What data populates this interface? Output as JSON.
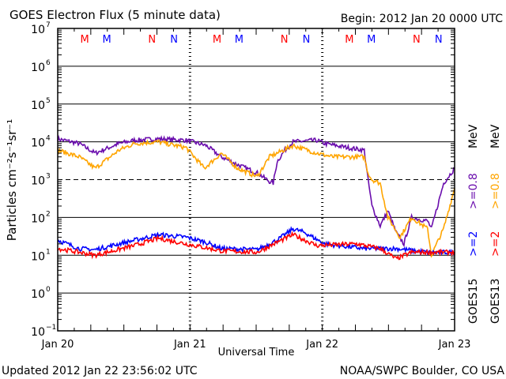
{
  "chart_data": {
    "type": "line",
    "title": "GOES Electron Flux (5 minute data)",
    "begin_label": "Begin: 2012 Jan 20 0000 UTC",
    "xlabel": "Universal Time",
    "ylabel": "Particles cm⁻²s⁻¹sr⁻¹",
    "x_unit": "hours since 2012 Jan 20 0000 UTC",
    "xlim": [
      0,
      72
    ],
    "x_ticks": [
      {
        "h": 0,
        "label": "Jan 20"
      },
      {
        "h": 24,
        "label": "Jan 21"
      },
      {
        "h": 48,
        "label": "Jan 22"
      },
      {
        "h": 72,
        "label": "Jan 23"
      }
    ],
    "yscale": "log",
    "ylim": [
      0.1,
      10000000
    ],
    "y_ticks": [
      {
        "exp": "7",
        "v": 10000000.0
      },
      {
        "exp": "6",
        "v": 1000000.0
      },
      {
        "exp": "5",
        "v": 100000.0
      },
      {
        "exp": "4",
        "v": 10000.0
      },
      {
        "exp": "3",
        "v": 1000.0
      },
      {
        "exp": "2",
        "v": 100.0
      },
      {
        "exp": "1",
        "v": 10.0
      },
      {
        "exp": "0",
        "v": 1
      },
      {
        "exp": "−1",
        "v": 0.1
      }
    ],
    "threshold_dashed": 1000,
    "markers": [
      {
        "h": 4.9,
        "label": "M",
        "color": "#ff0000"
      },
      {
        "h": 8.9,
        "label": "M",
        "color": "#0000ff"
      },
      {
        "h": 17.1,
        "label": "N",
        "color": "#ff0000"
      },
      {
        "h": 21.1,
        "label": "N",
        "color": "#0000ff"
      },
      {
        "h": 28.9,
        "label": "M",
        "color": "#ff0000"
      },
      {
        "h": 32.9,
        "label": "M",
        "color": "#0000ff"
      },
      {
        "h": 41.1,
        "label": "N",
        "color": "#ff0000"
      },
      {
        "h": 45.1,
        "label": "N",
        "color": "#0000ff"
      },
      {
        "h": 52.9,
        "label": "M",
        "color": "#ff0000"
      },
      {
        "h": 56.9,
        "label": "M",
        "color": "#0000ff"
      },
      {
        "h": 65.1,
        "label": "N",
        "color": "#ff0000"
      },
      {
        "h": 69.1,
        "label": "N",
        "color": "#0000ff"
      }
    ],
    "series": [
      {
        "name": "GOES15 >=0.8 MeV",
        "color": "#6a0dad",
        "points": [
          [
            0,
            12000
          ],
          [
            3.9,
            9000
          ],
          [
            6.8,
            5000
          ],
          [
            11.1,
            9000
          ],
          [
            13.9,
            11000
          ],
          [
            18.3,
            12000
          ],
          [
            23.3,
            11000
          ],
          [
            26.9,
            8000
          ],
          [
            29.7,
            4000
          ],
          [
            32.6,
            2500
          ],
          [
            36.2,
            1500
          ],
          [
            38.4,
            900
          ],
          [
            39.1,
            800
          ],
          [
            39.8,
            3000
          ],
          [
            41.2,
            6000
          ],
          [
            42.7,
            10000
          ],
          [
            47,
            11000
          ],
          [
            48.4,
            9000
          ],
          [
            52.7,
            7000
          ],
          [
            55.6,
            6000
          ],
          [
            56.3,
            1000
          ],
          [
            57,
            200
          ],
          [
            58.5,
            60
          ],
          [
            59.9,
            150
          ],
          [
            61.4,
            40
          ],
          [
            62.8,
            20
          ],
          [
            64.2,
            100
          ],
          [
            67.1,
            80
          ],
          [
            67.8,
            50
          ],
          [
            70,
            800
          ],
          [
            72,
            2000
          ]
        ]
      },
      {
        "name": "GOES13 >=0.8 MeV",
        "color": "#ffa500",
        "points": [
          [
            0,
            6000
          ],
          [
            3.9,
            4000
          ],
          [
            6.8,
            2000
          ],
          [
            11.1,
            6000
          ],
          [
            13.9,
            9000
          ],
          [
            18.3,
            10000
          ],
          [
            19.7,
            9000
          ],
          [
            23.3,
            7000
          ],
          [
            26.6,
            2000
          ],
          [
            29.7,
            5000
          ],
          [
            32.6,
            2000
          ],
          [
            36.2,
            1200
          ],
          [
            38.4,
            4000
          ],
          [
            42.7,
            8000
          ],
          [
            47,
            5000
          ],
          [
            49.9,
            4000
          ],
          [
            55.6,
            4000
          ],
          [
            56.3,
            1500
          ],
          [
            57,
            1000
          ],
          [
            58.5,
            800
          ],
          [
            59.9,
            100
          ],
          [
            62.1,
            30
          ],
          [
            64.2,
            100
          ],
          [
            67.1,
            50
          ],
          [
            67.8,
            10
          ],
          [
            70,
            50
          ],
          [
            72,
            600
          ]
        ]
      },
      {
        "name": "GOES15 >=2 MeV",
        "color": "#0000ff",
        "points": [
          [
            0,
            25
          ],
          [
            3.9,
            15
          ],
          [
            6.8,
            14
          ],
          [
            11.1,
            20
          ],
          [
            18.3,
            35
          ],
          [
            23.3,
            30
          ],
          [
            26.9,
            22
          ],
          [
            29.7,
            15
          ],
          [
            36.2,
            14
          ],
          [
            39.8,
            25
          ],
          [
            42.7,
            50
          ],
          [
            44.8,
            40
          ],
          [
            48.4,
            20
          ],
          [
            55.6,
            15
          ],
          [
            61.4,
            15
          ],
          [
            67.1,
            12
          ],
          [
            72,
            12
          ]
        ]
      },
      {
        "name": "GOES13 >=2 MeV",
        "color": "#ff0000",
        "points": [
          [
            0,
            15
          ],
          [
            3.9,
            12
          ],
          [
            6.8,
            10
          ],
          [
            13.9,
            18
          ],
          [
            18.3,
            28
          ],
          [
            23.3,
            20
          ],
          [
            29.7,
            13
          ],
          [
            36.2,
            12
          ],
          [
            39.8,
            22
          ],
          [
            42.7,
            35
          ],
          [
            47,
            18
          ],
          [
            54.2,
            20
          ],
          [
            58.5,
            15
          ],
          [
            61.4,
            8
          ],
          [
            64.2,
            12
          ],
          [
            72,
            12
          ]
        ]
      }
    ],
    "legend": {
      "placement": "right",
      "GOES15": {
        "name": "GOES15",
        "ch1": ">=2",
        "ch2": ">=0.8",
        "unit": "MeV"
      },
      "GOES13": {
        "name": "GOES13",
        "ch1": ">=2",
        "ch2": ">=0.8",
        "unit": "MeV"
      }
    }
  },
  "footer": {
    "updated": "Updated 2012 Jan 22 23:56:02 UTC",
    "source": "NOAA/SWPC Boulder, CO USA"
  }
}
